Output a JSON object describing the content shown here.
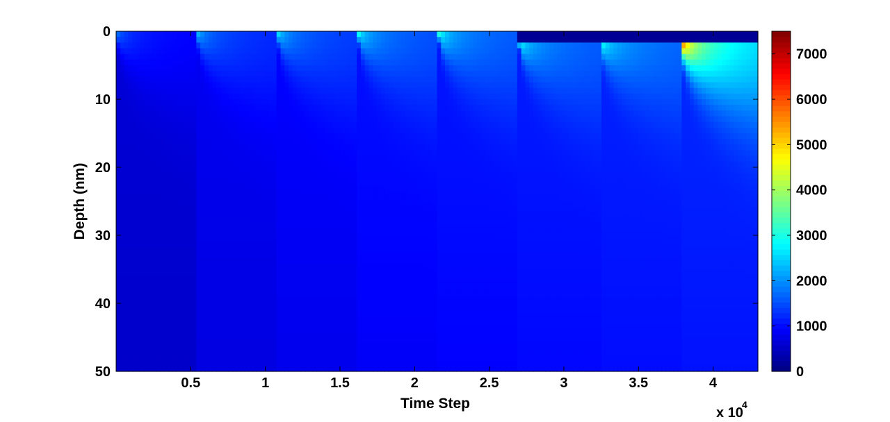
{
  "chart_data": {
    "type": "heatmap",
    "title": "",
    "xlabel": "Time Step",
    "ylabel": "Depth (nm)",
    "x_multiplier_label": "x 10",
    "x_multiplier_exponent": "4",
    "xlim": [
      0,
      4.3
    ],
    "ylim": [
      0,
      50
    ],
    "y_reversed": true,
    "x_ticks": [
      0.5,
      1,
      1.5,
      2,
      2.5,
      3,
      3.5,
      4
    ],
    "x_tick_labels": [
      "0.5",
      "1",
      "1.5",
      "2",
      "2.5",
      "3",
      "3.5",
      "4"
    ],
    "y_ticks": [
      0,
      10,
      20,
      30,
      40,
      50
    ],
    "y_tick_labels": [
      "0",
      "10",
      "20",
      "30",
      "40",
      "50"
    ],
    "colormap": "jet",
    "colorbar": {
      "range": [
        0,
        7500
      ],
      "ticks": [
        0,
        1000,
        2000,
        3000,
        4000,
        5000,
        6000,
        7000
      ],
      "tick_labels": [
        "0",
        "1000",
        "2000",
        "3000",
        "4000",
        "5000",
        "6000",
        "7000"
      ]
    },
    "pulses": [
      {
        "x_start": 0.0,
        "x_end": 0.54,
        "peak": 2000,
        "base": 650,
        "surface_removed_nm": 0
      },
      {
        "x_start": 0.54,
        "x_end": 1.08,
        "peak": 2600,
        "base": 850,
        "surface_removed_nm": 0
      },
      {
        "x_start": 1.08,
        "x_end": 1.62,
        "peak": 2900,
        "base": 950,
        "surface_removed_nm": 0
      },
      {
        "x_start": 1.62,
        "x_end": 2.16,
        "peak": 3200,
        "base": 1050,
        "surface_removed_nm": 0
      },
      {
        "x_start": 2.16,
        "x_end": 2.7,
        "peak": 3400,
        "base": 1100,
        "surface_removed_nm": 0
      },
      {
        "x_start": 2.7,
        "x_end": 3.24,
        "peak": 3300,
        "base": 1150,
        "surface_removed_nm": 1.3
      },
      {
        "x_start": 3.24,
        "x_end": 3.78,
        "peak": 3500,
        "base": 1200,
        "surface_removed_nm": 1.3
      },
      {
        "x_start": 3.78,
        "x_end": 4.3,
        "peak": 7400,
        "base": 1250,
        "surface_removed_nm": 1.3
      }
    ]
  }
}
